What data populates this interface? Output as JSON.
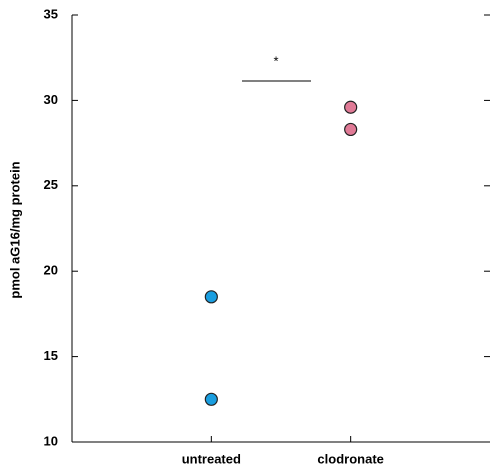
{
  "chart_data": {
    "type": "dot",
    "y_label": "pmol aG16/mg protein",
    "categories": [
      "untreated",
      "clodronate"
    ],
    "values": [
      [
        18.5,
        12.5
      ],
      [
        29.6,
        28.3
      ]
    ],
    "colors": [
      "#1a9ee0",
      "#e07a96"
    ],
    "ylim": [
      10,
      35
    ],
    "yticks": [
      10,
      15,
      20,
      25,
      30,
      35
    ],
    "annotation": "*"
  }
}
